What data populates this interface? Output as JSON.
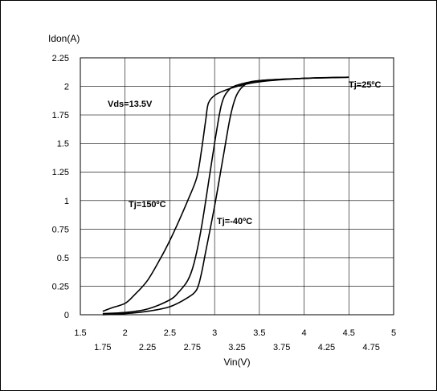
{
  "chart_data": {
    "type": "line",
    "title": "",
    "xlabel": "Vin(V)",
    "ylabel": "Idon(A)",
    "xlim": [
      1.5,
      5
    ],
    "ylim": [
      0,
      2.25
    ],
    "grid": true,
    "x_ticks": [
      1.5,
      1.75,
      2,
      2.25,
      2.5,
      2.75,
      3,
      3.25,
      3.5,
      3.75,
      4,
      4.25,
      4.5,
      4.75,
      5
    ],
    "x_tick_labels": [
      "1.5",
      "1.75",
      "2",
      "2.25",
      "2.5",
      "2.75",
      "3",
      "3.25",
      "3.5",
      "3.75",
      "4",
      "4.25",
      "4.5",
      "4.75",
      "5"
    ],
    "y_ticks": [
      0,
      0.25,
      0.5,
      0.75,
      1,
      1.25,
      1.5,
      1.75,
      2,
      2.25
    ],
    "y_tick_labels": [
      "0",
      "0.25",
      "0.5",
      "0.75",
      "1",
      "1.25",
      "1.5",
      "1.75",
      "2",
      "2.25"
    ],
    "annotations": [
      "Vds=13.5V",
      "Tj=150ºC",
      "Tj=-40ºC",
      "Tj=25ºC"
    ],
    "series": [
      {
        "label": "Tj=150ºC",
        "points": [
          [
            1.75,
            0.03
          ],
          [
            1.85,
            0.06
          ],
          [
            2.0,
            0.1
          ],
          [
            2.1,
            0.17
          ],
          [
            2.25,
            0.3
          ],
          [
            2.4,
            0.5
          ],
          [
            2.5,
            0.65
          ],
          [
            2.6,
            0.82
          ],
          [
            2.7,
            1.0
          ],
          [
            2.8,
            1.2
          ],
          [
            2.85,
            1.42
          ],
          [
            2.9,
            1.7
          ],
          [
            2.93,
            1.85
          ],
          [
            3.0,
            1.92
          ],
          [
            3.1,
            1.96
          ],
          [
            3.25,
            2.0
          ],
          [
            3.5,
            2.04
          ],
          [
            4.0,
            2.07
          ],
          [
            4.5,
            2.08
          ]
        ]
      },
      {
        "label": "Tj=25ºC",
        "points": [
          [
            1.75,
            0.01
          ],
          [
            2.0,
            0.02
          ],
          [
            2.25,
            0.05
          ],
          [
            2.5,
            0.13
          ],
          [
            2.6,
            0.2
          ],
          [
            2.7,
            0.3
          ],
          [
            2.77,
            0.45
          ],
          [
            2.85,
            0.75
          ],
          [
            2.95,
            1.25
          ],
          [
            3.02,
            1.6
          ],
          [
            3.08,
            1.85
          ],
          [
            3.15,
            1.96
          ],
          [
            3.25,
            2.01
          ],
          [
            3.5,
            2.05
          ],
          [
            4.0,
            2.07
          ],
          [
            4.5,
            2.08
          ]
        ]
      },
      {
        "label": "Tj=-40ºC",
        "points": [
          [
            1.75,
            0.0
          ],
          [
            2.0,
            0.01
          ],
          [
            2.25,
            0.03
          ],
          [
            2.5,
            0.07
          ],
          [
            2.7,
            0.15
          ],
          [
            2.8,
            0.22
          ],
          [
            2.85,
            0.35
          ],
          [
            2.9,
            0.55
          ],
          [
            3.0,
            0.95
          ],
          [
            3.1,
            1.4
          ],
          [
            3.18,
            1.75
          ],
          [
            3.25,
            1.93
          ],
          [
            3.35,
            2.02
          ],
          [
            3.5,
            2.05
          ],
          [
            4.0,
            2.07
          ],
          [
            4.5,
            2.08
          ]
        ]
      }
    ]
  }
}
